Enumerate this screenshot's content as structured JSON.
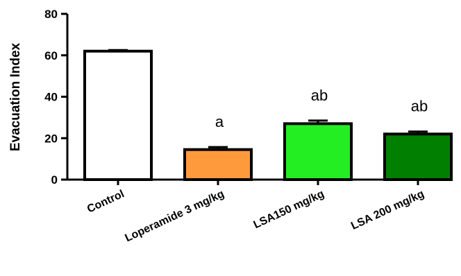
{
  "chart_data": {
    "type": "bar",
    "title": "",
    "xlabel": "",
    "ylabel": "Evacuation Index",
    "ylim": [
      0,
      80
    ],
    "yticks": [
      0,
      20,
      40,
      60,
      80
    ],
    "grid": false,
    "categories": [
      "Control",
      "Loperamide 3 mg/kg",
      "LSA150 mg/kg",
      "LSA 200 mg/kg"
    ],
    "values": [
      62,
      14.5,
      27,
      22
    ],
    "errors": [
      0.5,
      1.2,
      1.5,
      1.2
    ],
    "annotations": [
      "",
      "a",
      "ab",
      "ab"
    ],
    "colors": [
      "#ffffff",
      "#ff9a3c",
      "#22ee22",
      "#007f00"
    ]
  }
}
